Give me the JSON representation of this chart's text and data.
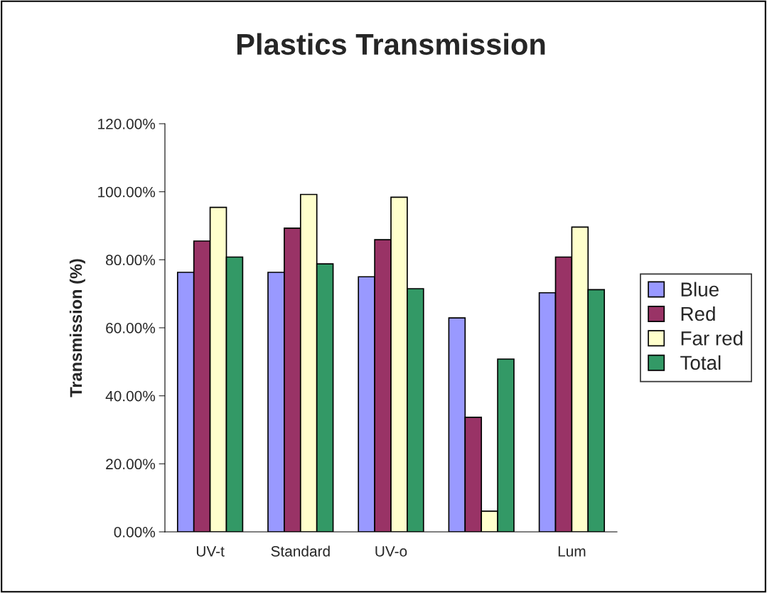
{
  "chart_data": {
    "type": "bar",
    "title": "Plastics Transmission",
    "ylabel": "Transmission (%)",
    "categories": [
      "UV-t",
      "Standard",
      "UV-o",
      null,
      "Lum"
    ],
    "series": [
      {
        "name": "Blue",
        "color": "#9999ff",
        "values": [
          76.3,
          76.3,
          75.0,
          62.9,
          70.3
        ]
      },
      {
        "name": "Red",
        "color": "#993366",
        "values": [
          85.5,
          89.3,
          85.9,
          33.7,
          80.8
        ]
      },
      {
        "name": "Far red",
        "color": "#ffffcc",
        "values": [
          95.4,
          99.2,
          98.4,
          6.1,
          89.6
        ]
      },
      {
        "name": "Total",
        "color": "#339966",
        "values": [
          80.8,
          78.8,
          71.5,
          50.8,
          71.2
        ]
      }
    ],
    "ylim": [
      0,
      120
    ],
    "yticks": [
      {
        "value": 0,
        "label": "0.00%"
      },
      {
        "value": 20,
        "label": "20.00%"
      },
      {
        "value": 40,
        "label": "40.00%"
      },
      {
        "value": 60,
        "label": "60.00%"
      },
      {
        "value": 80,
        "label": "80.00%"
      },
      {
        "value": 100,
        "label": "100.00%"
      },
      {
        "value": 120,
        "label": "120.00%"
      }
    ],
    "grid": false,
    "legend": "right"
  }
}
